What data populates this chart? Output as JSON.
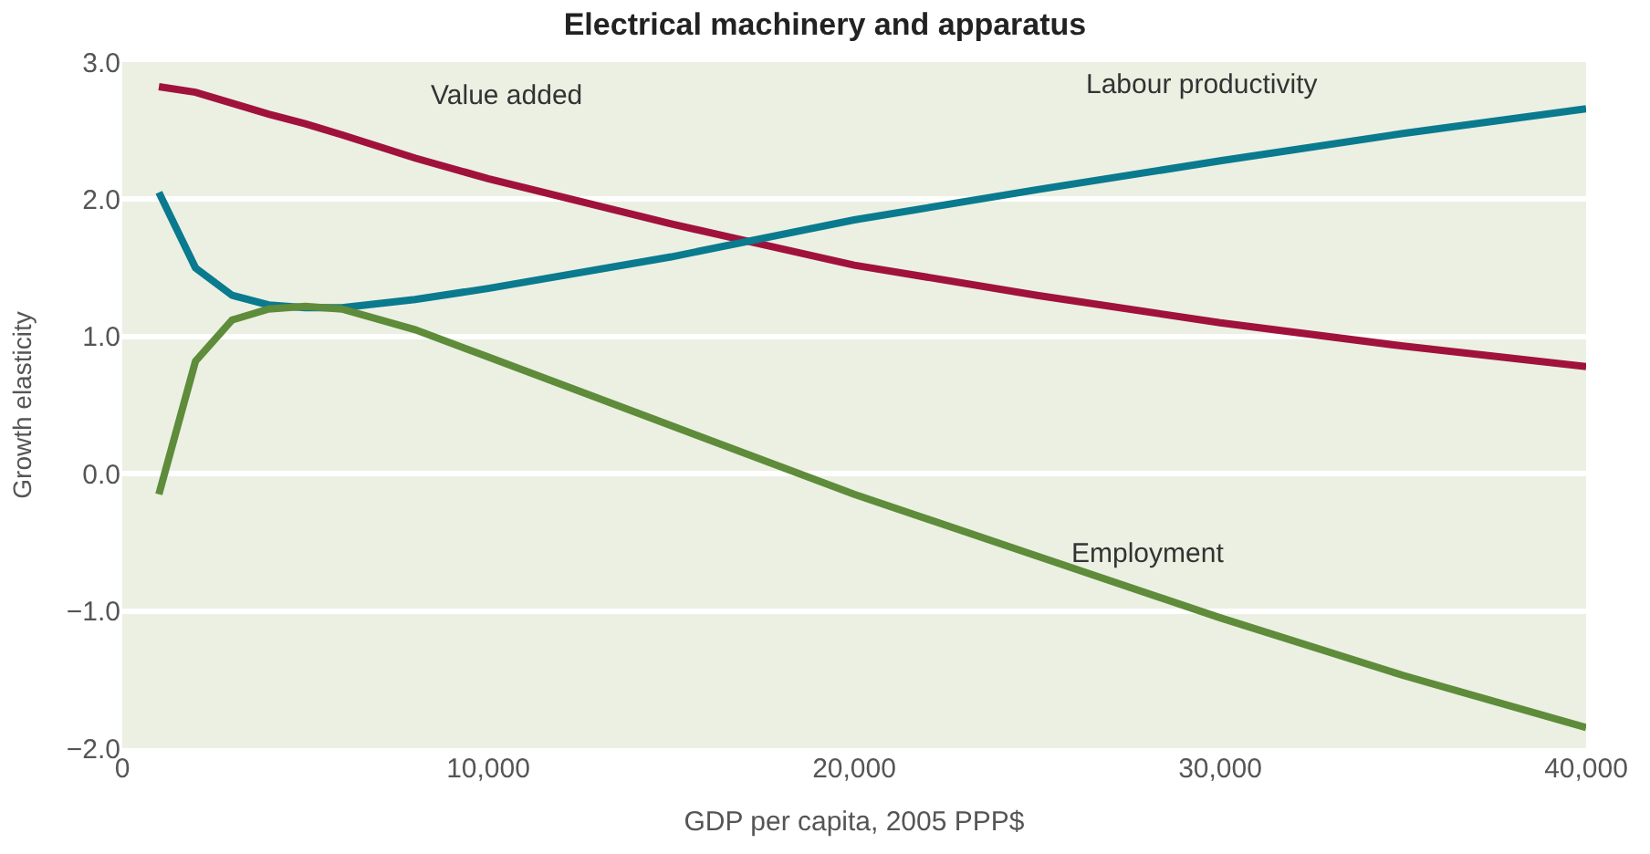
{
  "chart_data": {
    "type": "line",
    "title": "Electrical machinery and apparatus",
    "xlabel": "GDP per capita, 2005 PPP$",
    "ylabel": "Growth elasticity",
    "x": [
      1000,
      2000,
      3000,
      4000,
      5000,
      6000,
      8000,
      10000,
      15000,
      20000,
      25000,
      30000,
      35000,
      40000
    ],
    "series": [
      {
        "name": "Value added",
        "color": "#a0123c",
        "values": [
          2.82,
          2.78,
          2.7,
          2.62,
          2.55,
          2.47,
          2.3,
          2.15,
          1.82,
          1.52,
          1.3,
          1.1,
          0.93,
          0.78
        ]
      },
      {
        "name": "Labour productivity",
        "color": "#0a7a8e",
        "values": [
          2.05,
          1.5,
          1.3,
          1.23,
          1.21,
          1.21,
          1.27,
          1.35,
          1.58,
          1.85,
          2.07,
          2.28,
          2.48,
          2.66
        ]
      },
      {
        "name": "Employment",
        "color": "#5e8c3a",
        "values": [
          -0.15,
          0.82,
          1.12,
          1.2,
          1.22,
          1.2,
          1.05,
          0.85,
          0.35,
          -0.15,
          -0.6,
          -1.05,
          -1.47,
          -1.85
        ]
      }
    ],
    "xlim": [
      0,
      40000
    ],
    "xticks": [
      0,
      {
        "value": 10000,
        "label": "10,000"
      },
      {
        "value": 20000,
        "label": "20,000"
      },
      {
        "value": 30000,
        "label": "30,000"
      },
      {
        "value": 40000,
        "label": "40,000"
      }
    ],
    "ylim": [
      -2,
      3
    ],
    "yticks": [
      {
        "value": -2,
        "label": "−2.0"
      },
      {
        "value": -1,
        "label": "−1.0"
      },
      {
        "value": 0,
        "label": "0.0"
      },
      {
        "value": 1,
        "label": "1.0"
      },
      {
        "value": 2,
        "label": "2.0"
      },
      {
        "value": 3,
        "label": "3.0"
      }
    ],
    "grid": "y",
    "legend": false,
    "marker": "none",
    "line_style": "solid"
  }
}
